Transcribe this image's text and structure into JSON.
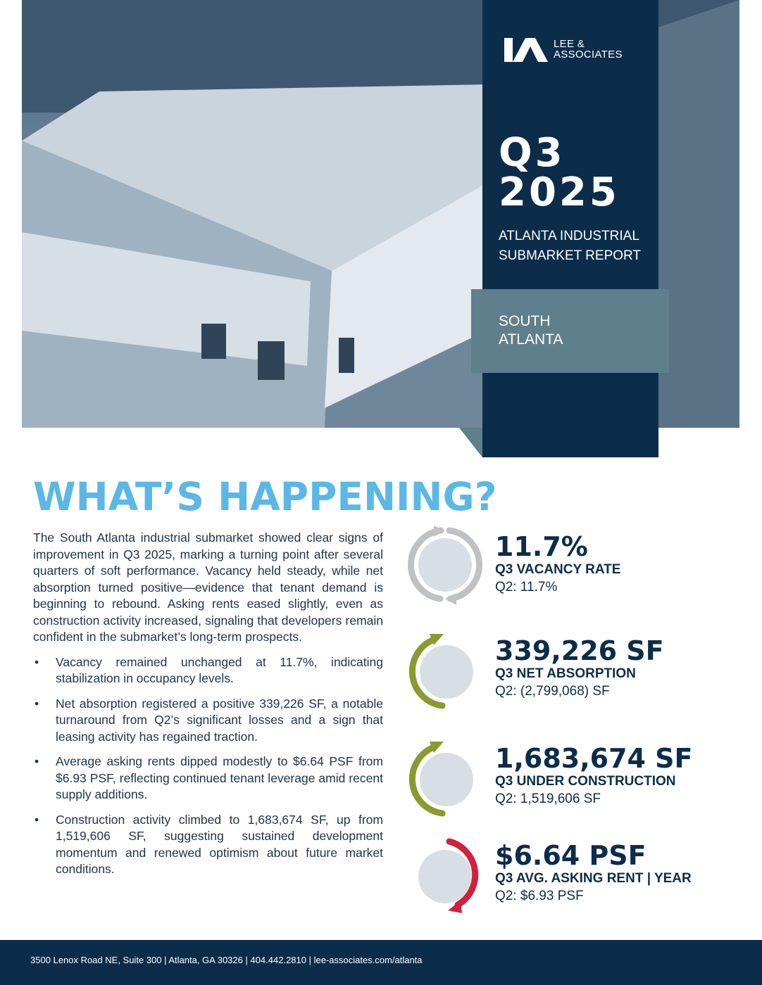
{
  "brand": {
    "logo_line1": "LEE &",
    "logo_line2": "ASSOCIATES",
    "navy": "#0b2d4a",
    "accent_blue": "#5bb8e6",
    "teal": "#5f7f8c"
  },
  "cover": {
    "quarter": "Q3",
    "year": "2025",
    "subtitle_line1": "ATLANTA INDUSTRIAL",
    "subtitle_line2": "SUBMARKET REPORT",
    "region_line1": "SOUTH",
    "region_line2": "ATLANTA"
  },
  "heading": "WHAT’S HAPPENING?",
  "intro": "The South Atlanta industrial submarket showed clear signs of improvement in Q3 2025, marking a turning point after several quarters of soft performance. Vacancy held steady, while net absorption turned positive—evidence that tenant demand is beginning to rebound. Asking rents eased slightly, even as construction activity increased, signaling that developers remain confident in the submarket’s long-term prospects.",
  "bullets": [
    "Vacancy remained unchanged at 11.7%, indicating stabilization in occupancy levels.",
    "Net absorption registered a positive 339,226 SF, a notable turnaround from Q2’s significant losses and a sign that leasing activity has regained traction.",
    "Average asking rents dipped modestly to $6.64 PSF from $6.93 PSF, reflecting continued tenant leverage amid recent supply additions.",
    "Construction activity climbed to 1,683,674 SF, up from 1,519,606 SF, suggesting sustained development momentum and renewed optimism about future market conditions."
  ],
  "stats": [
    {
      "value": "11.7%",
      "label": "Q3 VACANCY RATE",
      "prior": "Q2: 11.7%",
      "icon": "unchanged-cycle-icon",
      "color": "#bfc2c4"
    },
    {
      "value": "339,226 SF",
      "label": "Q3 NET ABSORPTION",
      "prior": "Q2: (2,799,068) SF",
      "icon": "increase-arrow-icon",
      "color": "#8a9a2e"
    },
    {
      "value": "1,683,674 SF",
      "label": "Q3 UNDER CONSTRUCTION",
      "prior": "Q2: 1,519,606 SF",
      "icon": "increase-arrow-icon",
      "color": "#8a9a2e"
    },
    {
      "value": "$6.64 PSF",
      "label": "Q3 AVG. ASKING RENT | YEAR",
      "prior": "Q2: $6.93 PSF",
      "icon": "decrease-arrow-icon",
      "color": "#d0213f"
    }
  ],
  "footer": "3500 Lenox Road NE, Suite 300 | Atlanta, GA 30326 | 404.442.2810 | lee-associates.com/atlanta"
}
